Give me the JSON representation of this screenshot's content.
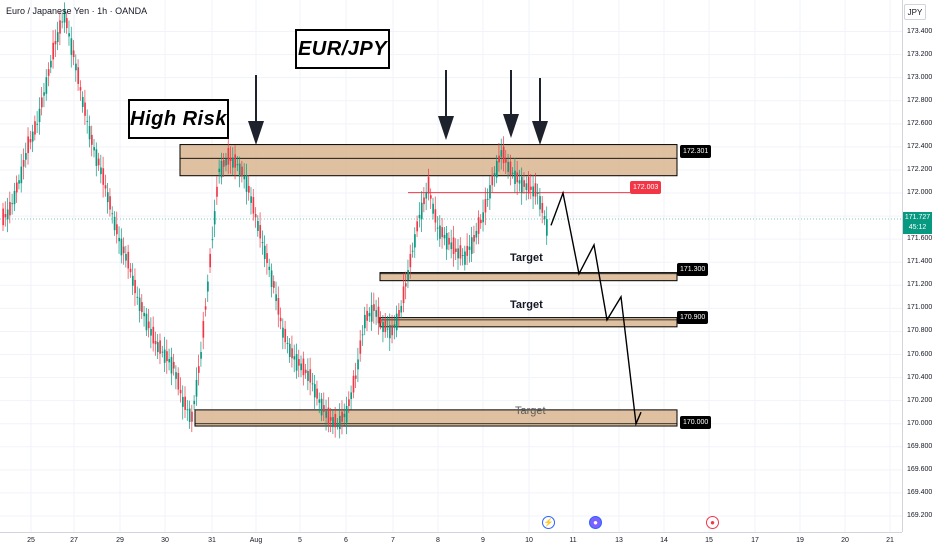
{
  "header": {
    "symbol_line": "Euro / Japanese Yen · 1h · OANDA",
    "currency": "JPY"
  },
  "annotations": {
    "title": "EUR/JPY",
    "risk_label": "High Risk",
    "target_labels": [
      "Target",
      "Target",
      "Target"
    ]
  },
  "colors": {
    "up": "#089981",
    "down": "#f23645",
    "zone_fill": "#d2a679",
    "resistance_line": "#f23645",
    "live_price_bg": "#089981"
  },
  "live_price": {
    "value": "171.727",
    "countdown": "45:12"
  },
  "events": [
    {
      "day": "10",
      "icon": "lightning-icon"
    },
    {
      "day": "11",
      "icon": "flag-icon"
    },
    {
      "day": "15",
      "icon": "flag-icon"
    }
  ],
  "chart_data": {
    "type": "candlestick",
    "title": "EUR/JPY",
    "timeframe": "1h",
    "source": "OANDA",
    "ylim": [
      169.2,
      173.5
    ],
    "grid": true,
    "y_ticks": [
      "173.400",
      "173.200",
      "173.000",
      "172.800",
      "172.600",
      "172.400",
      "172.200",
      "172.000",
      "171.800",
      "171.600",
      "171.400",
      "171.200",
      "171.000",
      "170.800",
      "170.600",
      "170.400",
      "170.200",
      "170.000",
      "169.800",
      "169.600",
      "169.400",
      "169.200"
    ],
    "x_ticks": [
      "25",
      "27",
      "29",
      "30",
      "31",
      "Aug",
      "5",
      "6",
      "7",
      "8",
      "9",
      "10",
      "11",
      "13",
      "14",
      "15",
      "17",
      "19",
      "20",
      "21"
    ],
    "price_levels": [
      {
        "name": "resistance-zone",
        "value": "172.301",
        "label": "172.301",
        "type": "zone",
        "bounds": [
          172.15,
          172.42
        ]
      },
      {
        "name": "current-resistance",
        "value": "172.003",
        "label": "172.003",
        "type": "line"
      },
      {
        "name": "target-1",
        "value": "171.300",
        "label": "171.300",
        "type": "zone",
        "bounds": [
          171.24,
          171.31
        ]
      },
      {
        "name": "target-2",
        "value": "170.900",
        "label": "170.900",
        "type": "zone",
        "bounds": [
          170.84,
          170.92
        ]
      },
      {
        "name": "target-3",
        "value": "170.000",
        "label": "170.000",
        "type": "zone",
        "bounds": [
          169.98,
          170.12
        ]
      }
    ],
    "series_close": [
      171.85,
      172.1,
      172.4,
      172.6,
      172.95,
      173.3,
      173.55,
      173.2,
      172.8,
      172.45,
      172.2,
      171.9,
      171.6,
      171.4,
      171.1,
      170.9,
      170.7,
      170.6,
      170.5,
      170.2,
      170.05,
      170.6,
      171.4,
      172.2,
      172.3,
      172.25,
      172.1,
      171.8,
      171.5,
      171.2,
      170.8,
      170.6,
      170.5,
      170.4,
      170.2,
      170.05,
      170.0,
      170.1,
      170.4,
      170.9,
      171.0,
      170.85,
      170.8,
      171.0,
      171.4,
      171.8,
      172.05,
      171.7,
      171.6,
      171.5,
      171.45,
      171.6,
      171.8,
      172.1,
      172.35,
      172.2,
      172.1,
      172.05,
      172.0,
      171.72
    ],
    "projection": [
      {
        "day_index": 0,
        "price": 171.72
      },
      {
        "day_index": 1,
        "price": 172.0
      },
      {
        "day_index": 2,
        "price": 171.3
      },
      {
        "day_index": 3,
        "price": 171.55
      },
      {
        "day_index": 4,
        "price": 170.9
      },
      {
        "day_index": 5,
        "price": 171.1
      },
      {
        "day_index": 6,
        "price": 170.0
      },
      {
        "day_index": 7,
        "price": 170.1
      }
    ]
  }
}
